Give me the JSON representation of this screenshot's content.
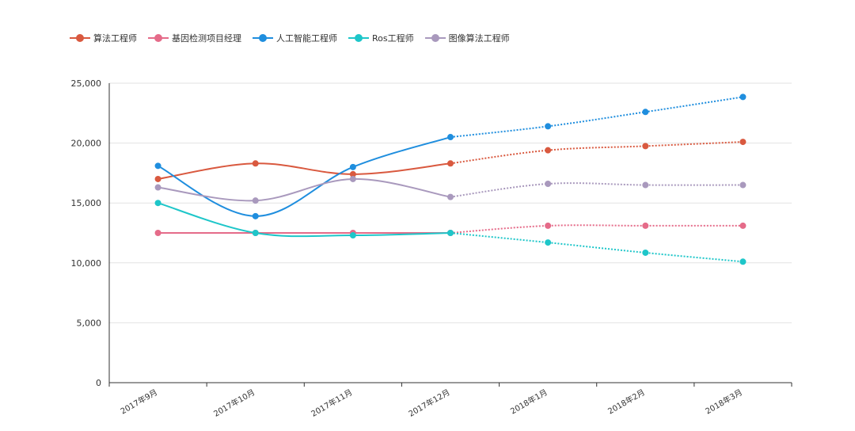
{
  "chart_data": {
    "type": "line",
    "categories": [
      "2017年9月",
      "2017年10月",
      "2017年11月",
      "2017年12月",
      "2018年1月",
      "2018年2月",
      "2018年3月"
    ],
    "series": [
      {
        "name": "算法工程师",
        "color": "#d9593f",
        "values": [
          17000,
          18300,
          17400,
          18300,
          19400,
          19750,
          20100
        ]
      },
      {
        "name": "基因检测项目经理",
        "color": "#e56b89",
        "values": [
          12500,
          12500,
          12500,
          12500,
          13100,
          13100,
          13100
        ]
      },
      {
        "name": "人工智能工程师",
        "color": "#1f8ede",
        "values": [
          18100,
          13900,
          18000,
          20500,
          21400,
          22600,
          23850
        ]
      },
      {
        "name": "Ros工程师",
        "color": "#1ec6c9",
        "values": [
          15000,
          12500,
          12300,
          12500,
          11700,
          10850,
          10100
        ]
      },
      {
        "name": "图像算法工程师",
        "color": "#a999bd",
        "values": [
          16300,
          15200,
          17000,
          15500,
          16600,
          16500,
          16500
        ]
      }
    ],
    "actual_until_index": 3,
    "ylim": [
      0,
      25000
    ],
    "yticks": [
      0,
      5000,
      10000,
      15000,
      20000,
      25000
    ],
    "ytick_labels": [
      "0",
      "5,000",
      "10,000",
      "15,000",
      "20,000",
      "25,000"
    ],
    "grid": true,
    "legend_position": "top-left",
    "title": "",
    "xlabel": "",
    "ylabel": ""
  }
}
